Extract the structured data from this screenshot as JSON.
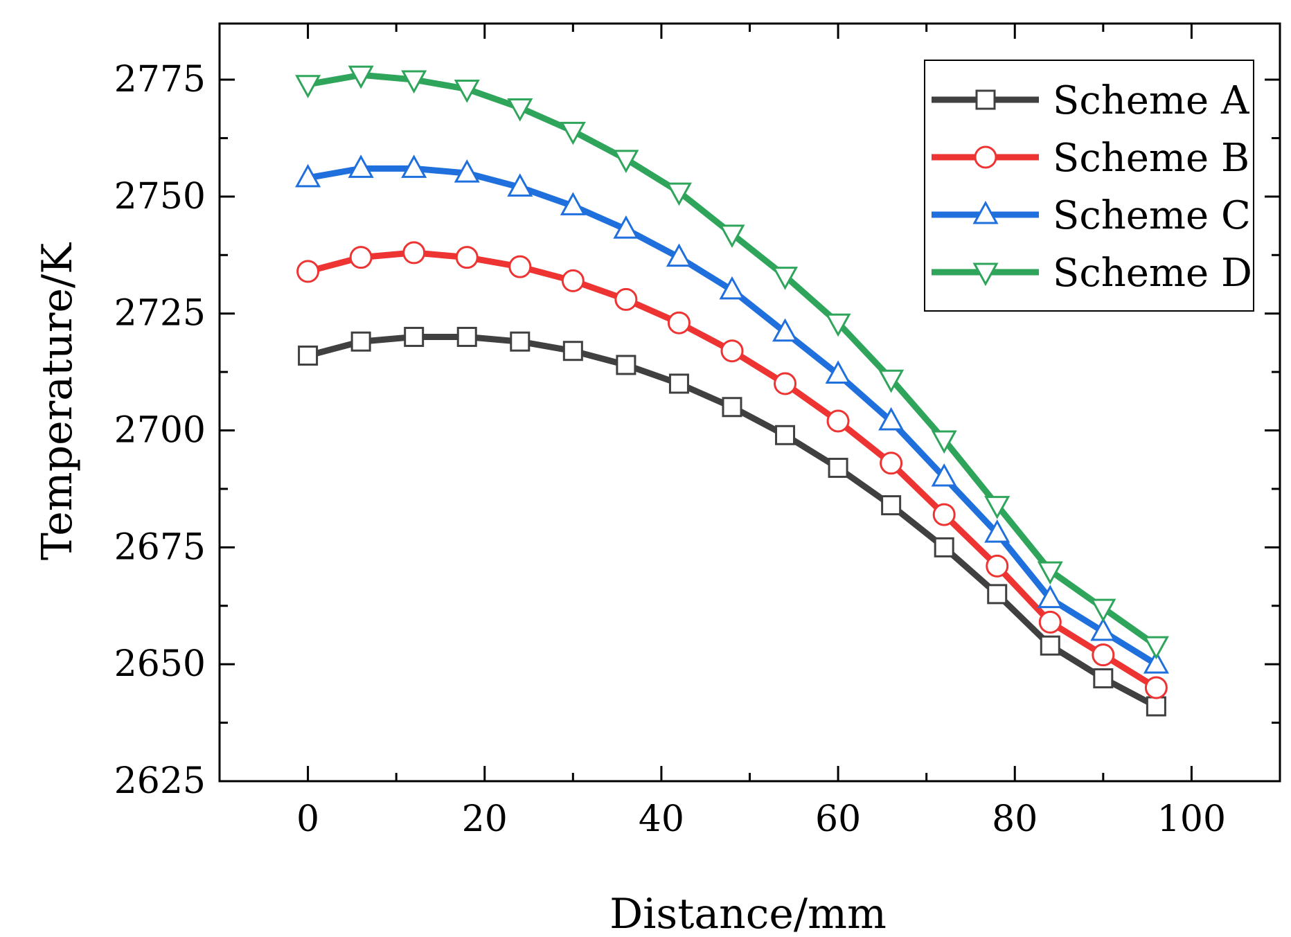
{
  "chart_data": {
    "type": "line",
    "title": "",
    "xlabel": "Distance/mm",
    "ylabel": "Temperature/K",
    "xlim": [
      -10,
      110
    ],
    "ylim": [
      2625,
      2787
    ],
    "xticks": [
      0,
      20,
      40,
      60,
      80,
      100
    ],
    "yticks": [
      2625,
      2650,
      2675,
      2700,
      2725,
      2750,
      2775
    ],
    "x": [
      0,
      6,
      12,
      18,
      24,
      30,
      36,
      42,
      48,
      54,
      60,
      66,
      72,
      78,
      84,
      90,
      96
    ],
    "legend_position": "top-right",
    "grid": false,
    "series": [
      {
        "name": "Scheme A",
        "color": "#404040",
        "marker": "square",
        "values": [
          2716,
          2719,
          2720,
          2720,
          2719,
          2717,
          2714,
          2710,
          2705,
          2699,
          2692,
          2684,
          2675,
          2665,
          2654,
          2647,
          2641
        ]
      },
      {
        "name": "Scheme B",
        "color": "#ee3333",
        "marker": "circle",
        "values": [
          2734,
          2737,
          2738,
          2737,
          2735,
          2732,
          2728,
          2723,
          2717,
          2710,
          2702,
          2693,
          2682,
          2671,
          2659,
          2652,
          2645
        ]
      },
      {
        "name": "Scheme C",
        "color": "#1f6fdd",
        "marker": "triangle-up",
        "values": [
          2754,
          2756,
          2756,
          2755,
          2752,
          2748,
          2743,
          2737,
          2730,
          2721,
          2712,
          2702,
          2690,
          2678,
          2664,
          2657,
          2650
        ]
      },
      {
        "name": "Scheme D",
        "color": "#2ea55a",
        "marker": "triangle-down",
        "values": [
          2774,
          2776,
          2775,
          2773,
          2769,
          2764,
          2758,
          2751,
          2742,
          2733,
          2723,
          2711,
          2698,
          2684,
          2670,
          2662,
          2654
        ]
      }
    ]
  }
}
